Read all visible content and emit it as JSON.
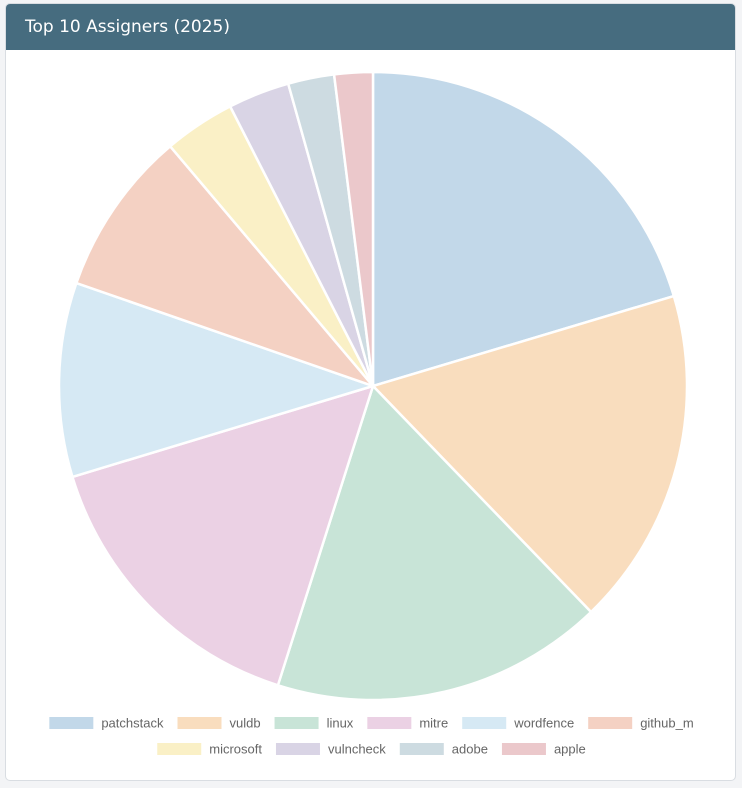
{
  "card": {
    "title": "Top 10 Assigners (2025)"
  },
  "chart_data": {
    "type": "pie",
    "categories": [
      "patchstack",
      "vuldb",
      "linux",
      "mitre",
      "wordfence",
      "github_m",
      "microsoft",
      "vulncheck",
      "adobe",
      "apple"
    ],
    "values": [
      20.6,
      17.6,
      17.3,
      15.6,
      10.1,
      8.6,
      3.7,
      3.2,
      2.4,
      2.0
    ],
    "colors": [
      "#c2d8e9",
      "#f9ddbe",
      "#c8e4d7",
      "#ebd1e4",
      "#d6e9f4",
      "#f4d1c3",
      "#faf0c6",
      "#d9d4e5",
      "#cddbe1",
      "#ebc8cb"
    ],
    "legend_position": "bottom",
    "start_angle": "top, clockwise"
  }
}
